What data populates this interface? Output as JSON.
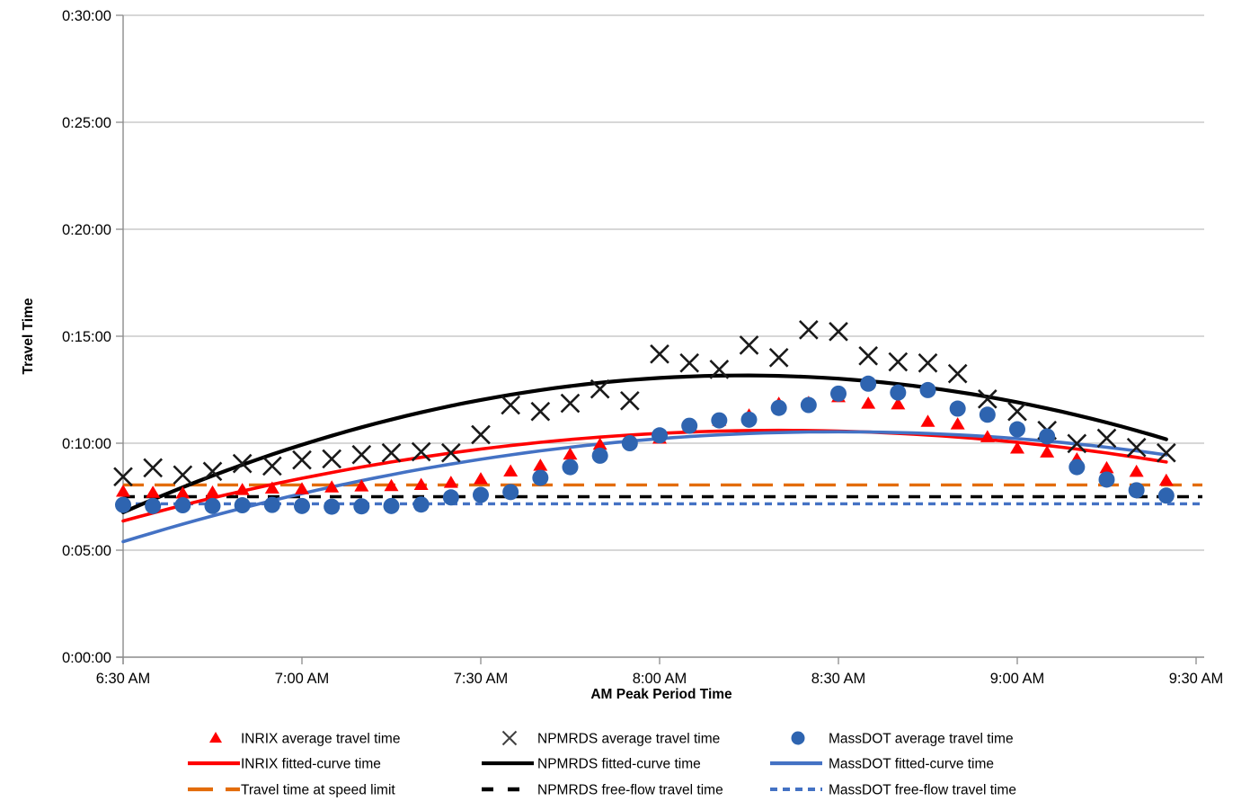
{
  "chart_data": {
    "type": "scatter",
    "title": "",
    "xlabel": "AM Peak Period Time",
    "ylabel": "Travel Time",
    "x_tick_labels": [
      "6:30 AM",
      "7:00 AM",
      "7:30 AM",
      "8:00 AM",
      "8:30 AM",
      "9:00 AM",
      "9:30 AM"
    ],
    "y_tick_labels": [
      "0:00:00",
      "0:05:00",
      "0:10:00",
      "0:15:00",
      "0:20:00",
      "0:25:00",
      "0:30:00"
    ],
    "y_axis_unit": "h:mm:ss travel time, plotted as seconds",
    "y_range_seconds": [
      0,
      1800
    ],
    "x_range": [
      "6:30 AM",
      "9:30 AM"
    ],
    "grid": "horizontal-only",
    "legend_position": "bottom",
    "times": [
      "6:30",
      "6:35",
      "6:40",
      "6:45",
      "6:50",
      "6:55",
      "7:00",
      "7:05",
      "7:10",
      "7:15",
      "7:20",
      "7:25",
      "7:30",
      "7:35",
      "7:40",
      "7:45",
      "7:50",
      "7:55",
      "8:00",
      "8:05",
      "8:10",
      "8:15",
      "8:20",
      "8:25",
      "8:30",
      "8:35",
      "8:40",
      "8:45",
      "8:50",
      "8:55",
      "9:00",
      "9:05",
      "9:10",
      "9:15",
      "9:20",
      "9:25"
    ],
    "start_minute": 390,
    "step_minutes": 5,
    "series": [
      {
        "name": "INRIX average travel time",
        "marker": "triangle",
        "color": "#FF0000",
        "values_seconds": [
          465,
          462,
          460,
          463,
          470,
          474,
          472,
          477,
          480,
          481,
          484,
          490,
          500,
          522,
          538,
          569,
          597,
          606,
          614,
          651,
          664,
          679,
          712,
          714,
          730,
          712,
          710,
          661,
          654,
          618,
          586,
          575,
          556,
          531,
          521,
          496
        ]
      },
      {
        "name": "NPMRDS average travel time",
        "marker": "x",
        "color": "#1A1A1A",
        "values_seconds": [
          506,
          531,
          511,
          521,
          543,
          536,
          553,
          556,
          568,
          573,
          576,
          573,
          624,
          707,
          689,
          712,
          752,
          719,
          850,
          825,
          807,
          875,
          840,
          918,
          913,
          845,
          828,
          825,
          795,
          724,
          689,
          636,
          599,
          614,
          588,
          573
        ]
      },
      {
        "name": "MassDOT average travel time",
        "marker": "circle",
        "color": "#2E64B0",
        "values_seconds": [
          427,
          424,
          426,
          424,
          426,
          427,
          424,
          422,
          423,
          424,
          428,
          448,
          455,
          463,
          503,
          533,
          565,
          600,
          622,
          649,
          664,
          666,
          699,
          707,
          739,
          767,
          742,
          749,
          697,
          680,
          639,
          619,
          533,
          498,
          468,
          453
        ]
      }
    ],
    "fitted_curves": [
      {
        "name": "INRIX fitted-curve time",
        "color": "#FF0000",
        "shape": "parabola",
        "peak_minute": 500,
        "peak_seconds": 636,
        "a_sec_per_min2": -0.021,
        "start_seconds": 382,
        "end_seconds": 547
      },
      {
        "name": "NPMRDS fitted-curve time",
        "color": "#000000",
        "shape": "parabola",
        "peak_minute": 494,
        "peak_seconds": 790,
        "a_sec_per_min2": -0.0355,
        "start_seconds": 406,
        "end_seconds": 611
      },
      {
        "name": "MassDOT fitted-curve time",
        "color": "#4472C4",
        "shape": "parabola",
        "peak_minute": 510,
        "peak_seconds": 632,
        "a_sec_per_min2": -0.0214,
        "start_seconds": 324,
        "end_seconds": 567
      }
    ],
    "reference_lines": [
      {
        "name": "Travel time at speed limit",
        "color": "#E36C0A",
        "seconds": 483,
        "time": "0:08:03",
        "dash": [
          23,
          12
        ]
      },
      {
        "name": "NPMRDS free-flow travel time",
        "color": "#000000",
        "seconds": 450,
        "time": "0:07:30",
        "dash": [
          13,
          10
        ]
      },
      {
        "name": "MassDOT free-flow travel time",
        "color": "#4472C4",
        "seconds": 430,
        "time": "0:07:10",
        "dash": [
          8,
          6
        ]
      }
    ],
    "legend_entries": [
      {
        "label": "INRIX average travel time",
        "swatch": "triangle",
        "color": "#FF0000"
      },
      {
        "label": "INRIX fitted-curve time",
        "swatch": "line",
        "color": "#FF0000"
      },
      {
        "label": "Travel time at speed limit",
        "swatch": "dash-long",
        "color": "#E36C0A"
      },
      {
        "label": "NPMRDS average travel time",
        "swatch": "x",
        "color": "#404040"
      },
      {
        "label": "NPMRDS fitted-curve time",
        "swatch": "line",
        "color": "#000000"
      },
      {
        "label": "NPMRDS free-flow travel time",
        "swatch": "dash",
        "color": "#000000"
      },
      {
        "label": "MassDOT average travel time",
        "swatch": "circle",
        "color": "#2E64B0"
      },
      {
        "label": "MassDOT fitted-curve time",
        "swatch": "line",
        "color": "#4472C4"
      },
      {
        "label": "MassDOT free-flow travel time",
        "swatch": "dash-small",
        "color": "#4472C4"
      }
    ],
    "colors": {
      "inrix_red": "#FF0000",
      "npmrds_black": "#000000",
      "massdot_marker_blue": "#2E64B0",
      "massdot_line_blue": "#4472C4",
      "speed_limit_orange": "#E36C0A",
      "gridline_gray": "#BFBFBF",
      "axis_gray": "#8C8C8C",
      "text_black": "#000000"
    }
  }
}
